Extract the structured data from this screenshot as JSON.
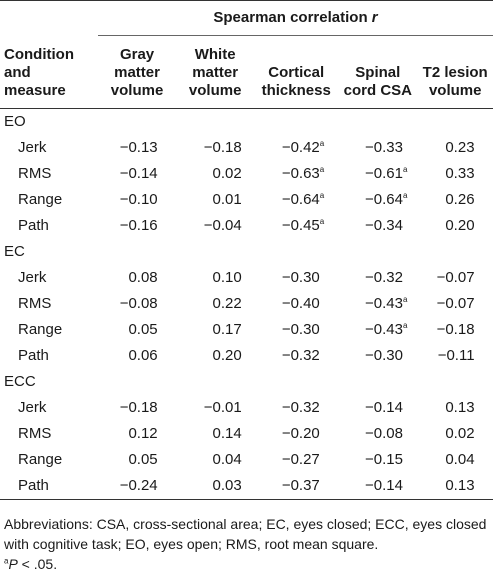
{
  "header": {
    "group_title": "Spearman correlation",
    "group_var": "r",
    "condition_col": [
      "Condition",
      "and",
      "measure"
    ],
    "columns": [
      [
        "Gray",
        "matter",
        "volume"
      ],
      [
        "White",
        "matter",
        "volume"
      ],
      [
        "Cortical",
        "thickness"
      ],
      [
        "Spinal",
        "cord CSA"
      ],
      [
        "T2 lesion",
        "volume"
      ]
    ]
  },
  "sections": [
    {
      "name": "EO",
      "rows": [
        {
          "measure": "Jerk",
          "values": [
            "−0.13",
            "−0.18",
            "−0.42",
            "−0.33",
            "0.23"
          ],
          "sig": [
            false,
            false,
            true,
            false,
            false
          ]
        },
        {
          "measure": "RMS",
          "values": [
            "−0.14",
            "0.02",
            "−0.63",
            "−0.61",
            "0.33"
          ],
          "sig": [
            false,
            false,
            true,
            true,
            false
          ]
        },
        {
          "measure": "Range",
          "values": [
            "−0.10",
            "0.01",
            "−0.64",
            "−0.64",
            "0.26"
          ],
          "sig": [
            false,
            false,
            true,
            true,
            false
          ]
        },
        {
          "measure": "Path",
          "values": [
            "−0.16",
            "−0.04",
            "−0.45",
            "−0.34",
            "0.20"
          ],
          "sig": [
            false,
            false,
            true,
            false,
            false
          ]
        }
      ]
    },
    {
      "name": "EC",
      "rows": [
        {
          "measure": "Jerk",
          "values": [
            "0.08",
            "0.10",
            "−0.30",
            "−0.32",
            "−0.07"
          ],
          "sig": [
            false,
            false,
            false,
            false,
            false
          ]
        },
        {
          "measure": "RMS",
          "values": [
            "−0.08",
            "0.22",
            "−0.40",
            "−0.43",
            "−0.07"
          ],
          "sig": [
            false,
            false,
            false,
            true,
            false
          ]
        },
        {
          "measure": "Range",
          "values": [
            "0.05",
            "0.17",
            "−0.30",
            "−0.43",
            "−0.18"
          ],
          "sig": [
            false,
            false,
            false,
            true,
            false
          ]
        },
        {
          "measure": "Path",
          "values": [
            "0.06",
            "0.20",
            "−0.32",
            "−0.30",
            "−0.11"
          ],
          "sig": [
            false,
            false,
            false,
            false,
            false
          ]
        }
      ]
    },
    {
      "name": "ECC",
      "rows": [
        {
          "measure": "Jerk",
          "values": [
            "−0.18",
            "−0.01",
            "−0.32",
            "−0.14",
            "0.13"
          ],
          "sig": [
            false,
            false,
            false,
            false,
            false
          ]
        },
        {
          "measure": "RMS",
          "values": [
            "0.12",
            "0.14",
            "−0.20",
            "−0.08",
            "0.02"
          ],
          "sig": [
            false,
            false,
            false,
            false,
            false
          ]
        },
        {
          "measure": "Range",
          "values": [
            "0.05",
            "0.04",
            "−0.27",
            "−0.15",
            "0.04"
          ],
          "sig": [
            false,
            false,
            false,
            false,
            false
          ]
        },
        {
          "measure": "Path",
          "values": [
            "−0.24",
            "0.03",
            "−0.37",
            "−0.14",
            "0.13"
          ],
          "sig": [
            false,
            false,
            false,
            false,
            false
          ]
        }
      ]
    }
  ],
  "sig_mark": "a",
  "footnote": {
    "abbreviations": "Abbreviations: CSA, cross-sectional area; EC, eyes closed; ECC, eyes closed with cognitive task; EO, eyes open; RMS, root mean square.",
    "sig_note_mark": "a",
    "sig_note_p": "P",
    "sig_note_rest": " < .05."
  }
}
